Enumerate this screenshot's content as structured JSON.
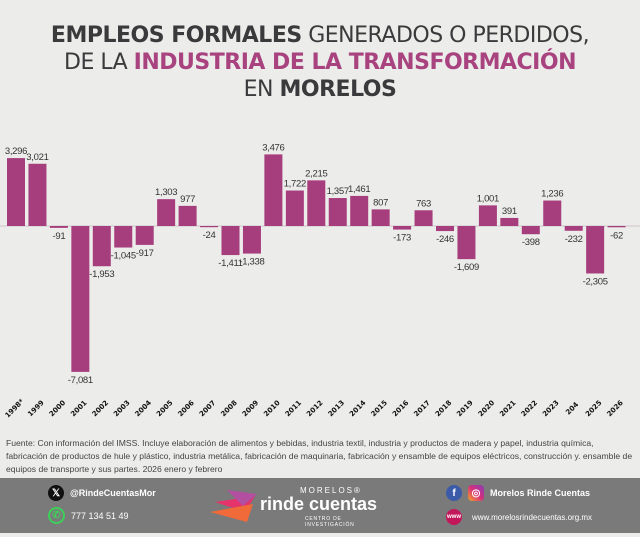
{
  "title": {
    "line1_bold": "EMPLEOS FORMALES",
    "line1_light": "GENERADOS O PERDIDOS,",
    "line2_light": "DE LA",
    "line2_pink": "INDUSTRIA DE LA TRANSFORMACIÓN",
    "line3_light": "EN",
    "line3_bold": "MORELOS"
  },
  "chart_data": {
    "type": "bar",
    "categories": [
      "1998*",
      "1999",
      "2000",
      "2001",
      "2002",
      "2003",
      "2004",
      "2005",
      "2006",
      "2007",
      "2008",
      "2009",
      "2010",
      "2011",
      "2012",
      "2013",
      "2014",
      "2015",
      "2016",
      "2017",
      "2018",
      "2019",
      "2020",
      "2021",
      "2022",
      "2023",
      "204",
      "2025",
      "2026"
    ],
    "values": [
      3296,
      3021,
      -91,
      -7081,
      -1953,
      -1045,
      -917,
      1303,
      977,
      -24,
      -1411,
      -1338,
      3476,
      1722,
      2215,
      1357,
      1461,
      807,
      -173,
      763,
      -246,
      -1609,
      1001,
      391,
      -398,
      1236,
      -232,
      -2305,
      -62
    ],
    "labels": [
      "3,296",
      "3,021",
      "-91",
      "-7,081",
      "-1,953",
      "-1,045",
      "-917",
      "1,303",
      "977",
      "-24",
      "-1,411",
      "-1,338",
      "3,476",
      "1,722",
      "2,215",
      "1,357",
      "1,461",
      "807",
      "-173",
      "763",
      "-246",
      "-1,609",
      "1,001",
      "391",
      "-398",
      "1,236",
      "-232",
      "-2,305",
      "-62"
    ],
    "bar_color": "#a63d7c",
    "ylim": [
      -7081,
      3476
    ],
    "grid": false
  },
  "source": "Fuente: Con información del IMSS. Incluye elaboración de alimentos y bebidas, industria textil, industria y productos de madera y papel,  industria química, fabricación de productos de hule y plástico, industria metálica, fabricación de maquinaria, fabricación y ensamble de equipos eléctricos, construcción  y. ensamble de equipos de transporte y sus partes. 2026 enero y febrero",
  "footer": {
    "twitter": "@RindeCuentasMor",
    "whatsapp": "777 134 51 49",
    "logo_top": "MORELOS®",
    "logo_main": "rinde cuentas",
    "logo_sub": "CENTRO DE INVESTIGACIÓN",
    "social": "Morelos Rinde Cuentas",
    "website": "www.morelosrindecuentas.org.mx",
    "icons": [
      "x-icon",
      "whatsapp-icon",
      "facebook-icon",
      "instagram-icon",
      "web-icon"
    ]
  }
}
